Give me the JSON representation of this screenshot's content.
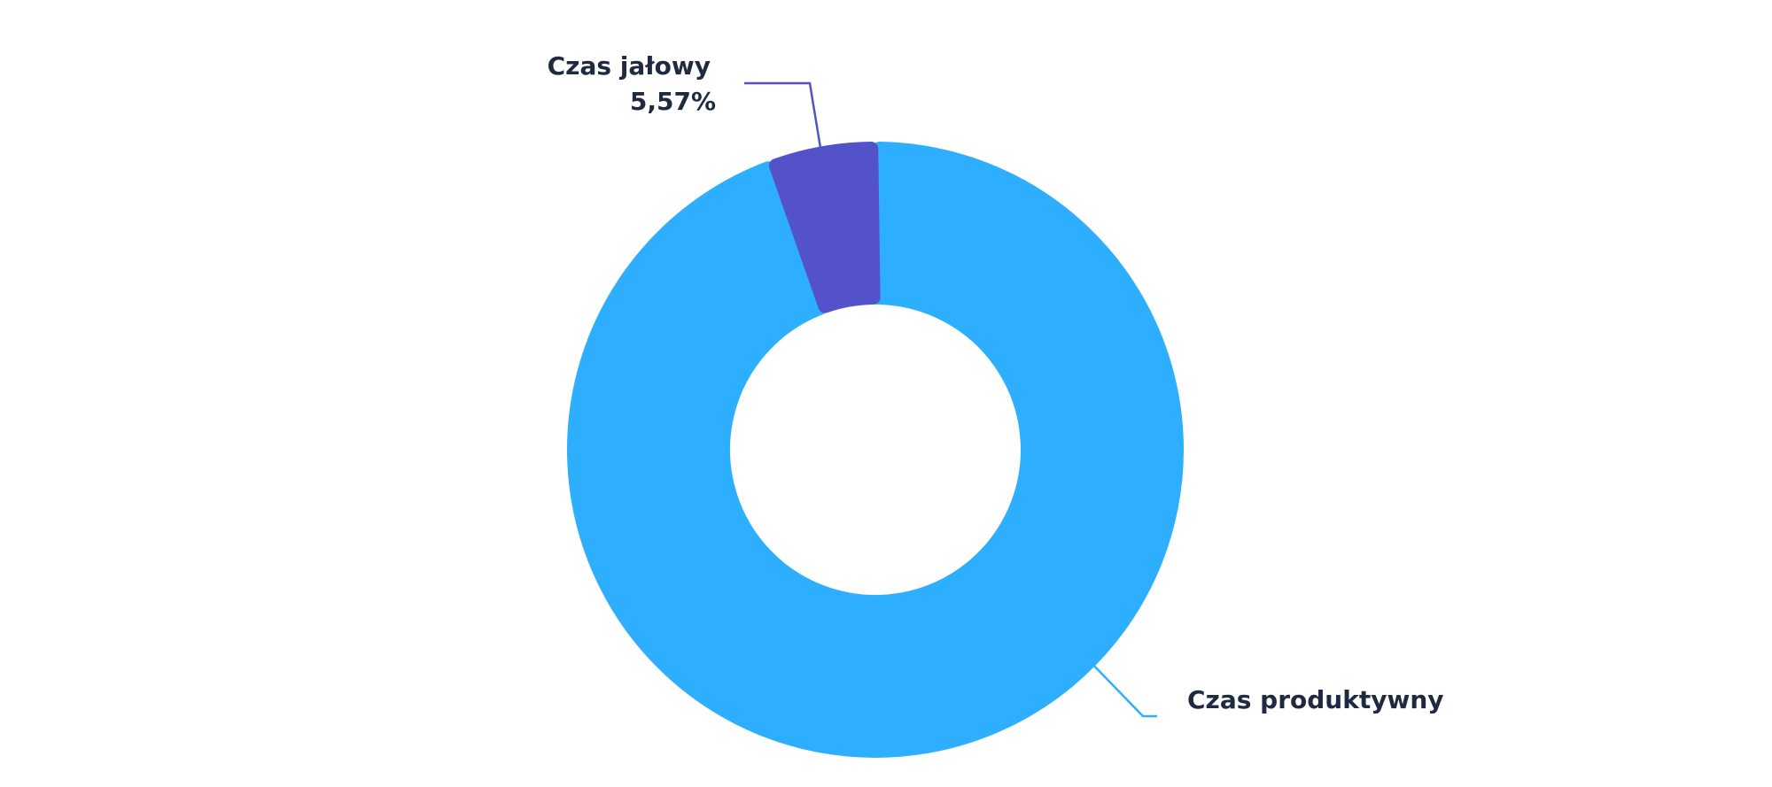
{
  "chart_data": {
    "type": "pie",
    "variant": "donut",
    "title": "",
    "legend": "none",
    "slices": [
      {
        "name": "Czas produktywny",
        "value": 94.43,
        "value_label": "",
        "color": "#2DAEFF"
      },
      {
        "name": "Czas jałowy",
        "value": 5.57,
        "value_label": "5,57%",
        "color": "#5352C8"
      }
    ]
  }
}
